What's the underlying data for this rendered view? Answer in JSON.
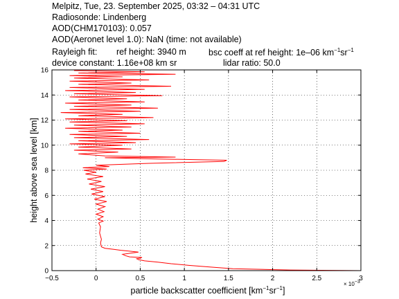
{
  "header": {
    "line1": "Melpitz, Tue, 23. September 2025, 03:32 – 04:31 UTC",
    "line2": "Radiosonde: Lindenberg",
    "line3": "AOD(CHM170103): 0.057",
    "line4": "AOD(Aeronet level 1.0): NaN   (time: not available)",
    "rayleigh_label": "Rayleigh fit:",
    "ref_height": "ref height: 3940 m",
    "bsc_coeff": "bsc coeff at ref height: 1e–06 km",
    "bsc_sup1": "−1",
    "bsc_sr": "sr",
    "bsc_sup2": "−1",
    "device_constant": "device constant: 1.16e+08 km sr",
    "lidar_ratio": "lidar ratio: 50.0"
  },
  "chart_data": {
    "type": "line",
    "title": "",
    "xlabel": "particle backscatter coefficient [km⁻¹sr⁻¹]",
    "xlabel_main": "particle backscatter coefficient [km",
    "xlabel_sup1": "−1",
    "xlabel_mid": "sr",
    "xlabel_sup2": "−1",
    "xlabel_end": "]",
    "ylabel": "height above sea level [km]",
    "x_exponent_label": "× 10",
    "x_exponent_power": "−3",
    "xlim": [
      -0.5,
      3
    ],
    "ylim": [
      0,
      16
    ],
    "x_scale_note": "x values in units of 1e-3",
    "xticks": [
      -0.5,
      0,
      0.5,
      1,
      1.5,
      2,
      2.5,
      3
    ],
    "xtick_labels": [
      "−0.5",
      "0",
      "0.5",
      "1",
      "1.5",
      "2",
      "2.5",
      "3"
    ],
    "yticks": [
      0,
      2,
      4,
      6,
      8,
      10,
      12,
      14,
      16
    ],
    "ytick_labels": [
      "0",
      "2",
      "4",
      "6",
      "8",
      "10",
      "12",
      "14",
      "16"
    ],
    "grid": true,
    "series": [
      {
        "color": "#ff0000",
        "points": [
          [
            3.0,
            0.0
          ],
          [
            2.2,
            0.05
          ],
          [
            1.55,
            0.15
          ],
          [
            1.3,
            0.28
          ],
          [
            1.05,
            0.42
          ],
          [
            0.85,
            0.55
          ],
          [
            0.7,
            0.68
          ],
          [
            0.55,
            0.78
          ],
          [
            0.48,
            0.88
          ],
          [
            0.46,
            0.95
          ],
          [
            0.5,
            1.0
          ],
          [
            0.52,
            1.05
          ],
          [
            0.38,
            1.1
          ],
          [
            0.33,
            1.2
          ],
          [
            0.3,
            1.3
          ],
          [
            0.4,
            1.4
          ],
          [
            0.48,
            1.48
          ],
          [
            0.38,
            1.55
          ],
          [
            0.28,
            1.62
          ],
          [
            0.2,
            1.7
          ],
          [
            0.1,
            1.78
          ],
          [
            0.06,
            1.9
          ],
          [
            0.05,
            2.2
          ],
          [
            0.06,
            2.5
          ],
          [
            0.04,
            3.0
          ],
          [
            0.05,
            3.5
          ],
          [
            0.03,
            3.8
          ],
          [
            0.08,
            3.95
          ],
          [
            0.02,
            4.1
          ],
          [
            0.08,
            4.3
          ],
          [
            0.0,
            4.5
          ],
          [
            0.09,
            4.7
          ],
          [
            0.02,
            4.9
          ],
          [
            0.1,
            5.1
          ],
          [
            0.0,
            5.3
          ],
          [
            0.12,
            5.5
          ],
          [
            -0.02,
            5.7
          ],
          [
            0.1,
            5.9
          ],
          [
            -0.05,
            6.1
          ],
          [
            0.08,
            6.3
          ],
          [
            -0.06,
            6.5
          ],
          [
            0.1,
            6.7
          ],
          [
            -0.08,
            6.9
          ],
          [
            0.06,
            7.1
          ],
          [
            -0.1,
            7.3
          ],
          [
            0.08,
            7.5
          ],
          [
            -0.12,
            7.7
          ],
          [
            0.0,
            7.85
          ],
          [
            -0.14,
            8.0
          ],
          [
            0.12,
            8.1
          ],
          [
            -0.15,
            8.2
          ],
          [
            0.15,
            8.3
          ],
          [
            0.0,
            8.4
          ],
          [
            0.6,
            8.55
          ],
          [
            1.45,
            8.7
          ],
          [
            1.48,
            8.8
          ],
          [
            0.7,
            8.9
          ],
          [
            0.1,
            9.0
          ],
          [
            0.9,
            9.05
          ],
          [
            0.1,
            9.15
          ],
          [
            -0.2,
            9.3
          ],
          [
            0.25,
            9.45
          ],
          [
            -0.25,
            9.6
          ],
          [
            0.4,
            9.7
          ],
          [
            -0.2,
            9.85
          ],
          [
            0.3,
            10.0
          ],
          [
            -0.3,
            10.1
          ],
          [
            0.45,
            10.2
          ],
          [
            -0.2,
            10.35
          ],
          [
            0.6,
            10.45
          ],
          [
            -0.25,
            10.6
          ],
          [
            0.35,
            10.7
          ],
          [
            -0.3,
            10.85
          ],
          [
            0.5,
            10.95
          ],
          [
            -0.2,
            11.1
          ],
          [
            0.3,
            11.2
          ],
          [
            -0.35,
            11.35
          ],
          [
            0.4,
            11.45
          ],
          [
            -0.25,
            11.6
          ],
          [
            0.55,
            11.7
          ],
          [
            -0.3,
            11.85
          ],
          [
            0.35,
            11.95
          ],
          [
            -0.35,
            12.1
          ],
          [
            0.65,
            12.2
          ],
          [
            -0.2,
            12.35
          ],
          [
            0.3,
            12.45
          ],
          [
            -0.4,
            12.6
          ],
          [
            0.5,
            12.7
          ],
          [
            -0.3,
            12.85
          ],
          [
            0.7,
            12.95
          ],
          [
            -0.25,
            13.1
          ],
          [
            0.4,
            13.2
          ],
          [
            -0.35,
            13.35
          ],
          [
            0.55,
            13.45
          ],
          [
            -0.2,
            13.6
          ],
          [
            0.35,
            13.7
          ],
          [
            -0.3,
            13.85
          ],
          [
            0.75,
            13.95
          ],
          [
            -0.25,
            14.1
          ],
          [
            0.45,
            14.2
          ],
          [
            -0.35,
            14.35
          ],
          [
            0.55,
            14.45
          ],
          [
            -0.3,
            14.6
          ],
          [
            0.85,
            14.7
          ],
          [
            -0.2,
            14.85
          ],
          [
            0.4,
            14.95
          ],
          [
            -0.3,
            15.1
          ],
          [
            0.6,
            15.2
          ],
          [
            -0.25,
            15.35
          ],
          [
            0.3,
            15.45
          ],
          [
            -0.3,
            15.55
          ],
          [
            0.9,
            15.65
          ],
          [
            -0.2,
            15.75
          ],
          [
            0.55,
            15.85
          ],
          [
            -0.25,
            15.95
          ]
        ]
      }
    ]
  }
}
